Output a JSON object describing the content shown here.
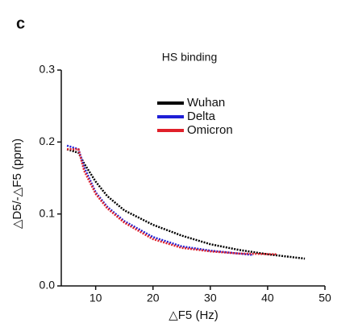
{
  "chart_data": {
    "type": "line",
    "panel_label": "c",
    "title": "HS binding",
    "x_label": "△F5 (Hz)",
    "y_label": "△D5/-△F5 (ppm)",
    "xlim": [
      4,
      50
    ],
    "ylim": [
      0,
      0.3
    ],
    "xticks": [
      10,
      20,
      30,
      40,
      50
    ],
    "yticks": [
      {
        "value": 0,
        "label": "0.0"
      },
      0.1,
      0.2,
      0.3
    ],
    "series": [
      {
        "name": "Wuhan",
        "color": "#000000",
        "x": [
          5,
          7,
          8,
          10,
          12,
          15,
          20,
          25,
          30,
          35,
          40,
          46.5
        ],
        "values": [
          0.19,
          0.185,
          0.17,
          0.145,
          0.125,
          0.105,
          0.085,
          0.07,
          0.058,
          0.05,
          0.044,
          0.038
        ]
      },
      {
        "name": "Delta",
        "color": "#1f1fd6",
        "x": [
          5,
          7,
          8,
          10,
          12,
          15,
          20,
          25,
          30,
          35,
          37.5
        ],
        "values": [
          0.195,
          0.19,
          0.165,
          0.13,
          0.11,
          0.09,
          0.068,
          0.055,
          0.049,
          0.045,
          0.043
        ]
      },
      {
        "name": "Omicron",
        "color": "#e0202a",
        "x": [
          5,
          7,
          8,
          10,
          12,
          15,
          20,
          25,
          30,
          35,
          41.5
        ],
        "values": [
          0.19,
          0.19,
          0.16,
          0.128,
          0.108,
          0.088,
          0.065,
          0.053,
          0.048,
          0.045,
          0.044
        ]
      }
    ]
  }
}
